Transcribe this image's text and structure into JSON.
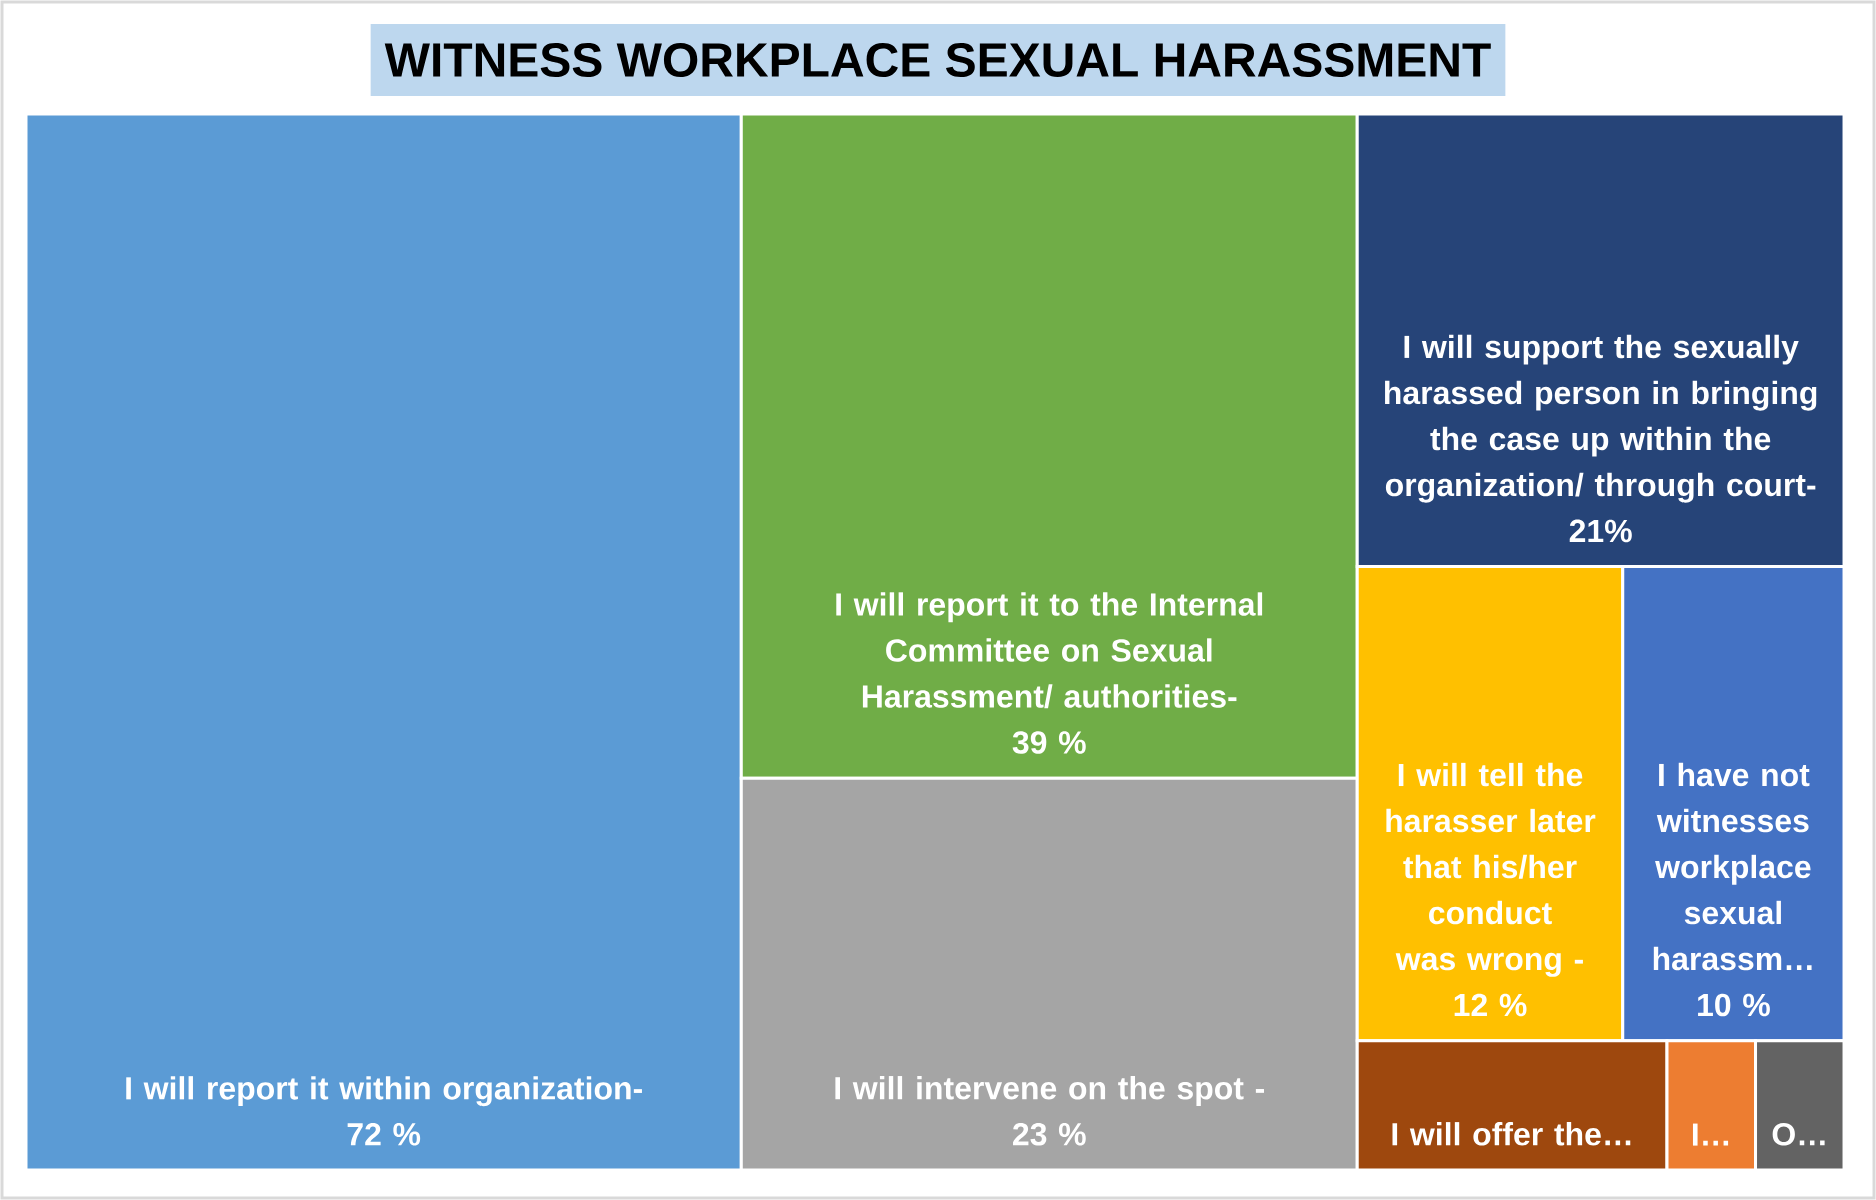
{
  "chart_data": {
    "type": "other",
    "title": "WITNESS WORKPLACE SEXUAL HARASSMENT",
    "categories": [
      "I will report it within organization-",
      "I will report it to the Internal Committee on Sexual Harassment/ authorities-",
      "I will intervene on the spot -",
      "I will support the sexually harassed person in bringing the case up within the organization/ through court-",
      "I will tell the harasser later that his/her conduct was wrong -",
      "I have not witnesses workplace sexual harassm…",
      "I will offer the…",
      "I…",
      "O…"
    ],
    "values": [
      72,
      39,
      23,
      21,
      12,
      10,
      null,
      null,
      null
    ],
    "value_labels": [
      "72 %",
      "39 %",
      "23 %",
      "21%",
      "12 %",
      "10 %",
      null,
      null,
      null
    ],
    "colors": [
      "#5b9bd5",
      "#70ad47",
      "#a5a5a5",
      "#264478",
      "#ffc000",
      "#4472c4",
      "#9e480e",
      "#ed7d31",
      "#636363"
    ]
  }
}
